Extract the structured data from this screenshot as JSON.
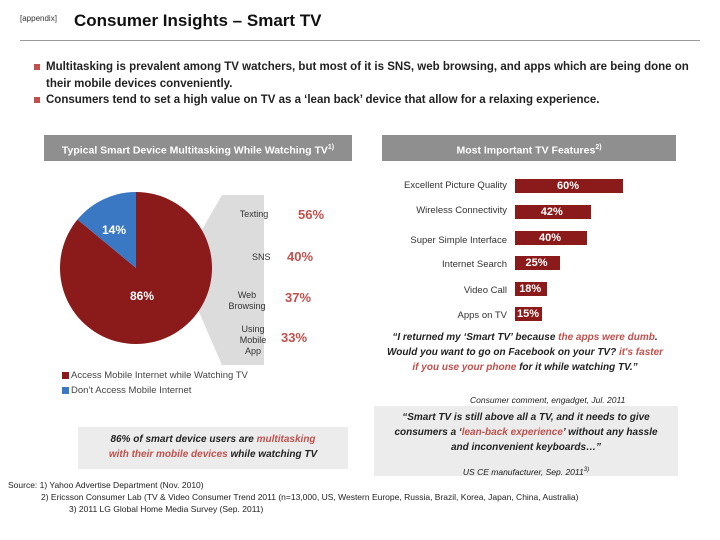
{
  "header": {
    "tag": "[appendix]",
    "title": "Consumer Insights – Smart TV"
  },
  "bullets": [
    "Multitasking is prevalent among TV watchers, but most of it is SNS, web browsing, and apps which are being done on their mobile devices conveniently.",
    "Consumers tend to set a high value on TV as a ‘lean back’ device that allow for a relaxing experience."
  ],
  "left_panel": {
    "header": "Typical Smart Device Multitasking While Watching TV",
    "header_sup": "1)",
    "pie_labels": [
      "14%",
      "86%"
    ],
    "activities": [
      {
        "label": "Texting",
        "pct": "56%"
      },
      {
        "label": "SNS",
        "pct": "40%"
      },
      {
        "label": "Web Browsing",
        "pct": "37%"
      },
      {
        "label": "Using Mobile App",
        "pct": "33%"
      }
    ],
    "legend": [
      {
        "label": "Access Mobile Internet while Watching TV",
        "color": "#8b1a1a"
      },
      {
        "label": "Don’t Access Mobile Internet",
        "color": "#3a78c4"
      }
    ],
    "callout_part1": "86% of smart device users are ",
    "callout_hl1": "multitasking",
    "callout_hl2": "with their mobile devices",
    "callout_part2": " while watching TV"
  },
  "right_panel": {
    "header": "Most Important TV Features",
    "header_sup": "2)",
    "quote1": {
      "p1": "“I returned my ‘Smart TV’ because ",
      "h1": "the apps were dumb",
      "p2": ". Would you want to go on Facebook on your TV? ",
      "h2": "it's faster if you use your phone",
      "p3": " for it while watching TV.”",
      "attribution": "Consumer comment, engadget, Jul. 2011"
    },
    "quote2": {
      "p1": "“Smart TV is still above all a TV, and it needs to give consumers a ‘",
      "h1": "lean-back experience",
      "p2": "’ without any hassle and inconvenient keyboards…”",
      "attribution": "US CE manufacturer, Sep. 2011",
      "attribution_sup": "3)"
    }
  },
  "sources": [
    "Source: 1) Yahoo Advertise Department (Nov. 2010)",
    "2) Ericsson Consumer Lab (TV & Video Consumer Trend 2011 (n=13,000, US, Western Europe, Russia, Brazil, Korea, Japan, China, Australia)",
    "3) 2011 LG Global Home Media Survey (Sep. 2011)"
  ],
  "colors": {
    "accent": "#c0504d",
    "bar": "#8b1a1a",
    "pie_main": "#8b1a1a",
    "pie_minor": "#3a78c4"
  },
  "chart_data": [
    {
      "type": "pie",
      "categories": [
        "Access Mobile Internet while Watching TV",
        "Don’t Access Mobile Internet"
      ],
      "values": [
        86,
        14
      ],
      "title": "Typical Smart Device Multitasking While Watching TV"
    },
    {
      "type": "bar",
      "categories": [
        "Texting",
        "SNS",
        "Web Browsing",
        "Using Mobile App"
      ],
      "values": [
        56,
        40,
        37,
        33
      ]
    },
    {
      "type": "bar",
      "orientation": "horizontal",
      "title": "Most Important TV Features",
      "categories": [
        "Excellent Picture Quality",
        "Wireless Connectivity",
        "Super Simple Interface",
        "Internet Search",
        "Video Call",
        "Apps on TV"
      ],
      "values": [
        60,
        42,
        40,
        25,
        18,
        15
      ],
      "value_labels": [
        "60%",
        "42%",
        "40%",
        "25%",
        "18%",
        "15%"
      ],
      "xlim": [
        0,
        60
      ]
    }
  ]
}
